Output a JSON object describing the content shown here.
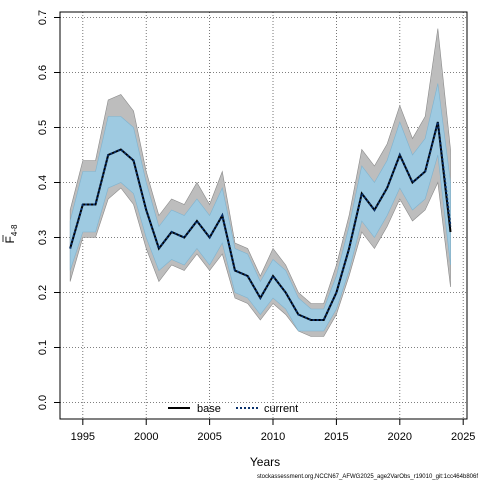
{
  "chart_data": {
    "type": "line",
    "xlabel": "Years",
    "ylabel_main": "F",
    "ylabel_sub": "4-8",
    "xlim": [
      1993.2,
      2025.3
    ],
    "ylim": [
      -0.03,
      0.71
    ],
    "x_ticks": [
      1995,
      2000,
      2005,
      2010,
      2015,
      2020,
      2025
    ],
    "y_ticks": [
      0.0,
      0.1,
      0.2,
      0.3,
      0.4,
      0.5,
      0.6,
      0.7
    ],
    "y_tick_labels": [
      "0.0",
      "0.1",
      "0.2",
      "0.3",
      "0.4",
      "0.5",
      "0.6",
      "0.7"
    ],
    "grid": true,
    "legend_position": "bottom-center",
    "x": [
      1994,
      1995,
      1996,
      1997,
      1998,
      1999,
      2000,
      2001,
      2002,
      2003,
      2004,
      2005,
      2006,
      2007,
      2008,
      2009,
      2010,
      2011,
      2012,
      2013,
      2014,
      2015,
      2016,
      2017,
      2018,
      2019,
      2020,
      2021,
      2022,
      2023,
      2024
    ],
    "series": [
      {
        "name": "base",
        "style": "solid",
        "color": "#000000",
        "values": [
          0.28,
          0.36,
          0.36,
          0.45,
          0.46,
          0.44,
          0.35,
          0.28,
          0.31,
          0.3,
          0.33,
          0.3,
          0.34,
          0.24,
          0.23,
          0.19,
          0.23,
          0.2,
          0.16,
          0.15,
          0.15,
          0.2,
          0.28,
          0.38,
          0.35,
          0.39,
          0.45,
          0.4,
          0.42,
          0.51,
          0.31
        ],
        "band_lower": [
          0.22,
          0.3,
          0.3,
          0.37,
          0.39,
          0.36,
          0.28,
          0.22,
          0.25,
          0.24,
          0.27,
          0.24,
          0.27,
          0.19,
          0.18,
          0.15,
          0.18,
          0.16,
          0.13,
          0.12,
          0.12,
          0.16,
          0.23,
          0.31,
          0.28,
          0.32,
          0.37,
          0.33,
          0.35,
          0.4,
          0.21
        ],
        "band_upper": [
          0.35,
          0.44,
          0.44,
          0.55,
          0.56,
          0.53,
          0.42,
          0.34,
          0.37,
          0.36,
          0.4,
          0.36,
          0.42,
          0.29,
          0.28,
          0.23,
          0.28,
          0.25,
          0.2,
          0.18,
          0.18,
          0.25,
          0.34,
          0.46,
          0.43,
          0.47,
          0.54,
          0.48,
          0.52,
          0.68,
          0.46
        ],
        "band_color": "#bdbdbd"
      },
      {
        "name": "current",
        "style": "dotted",
        "color": "#08306b",
        "values": [
          0.28,
          0.36,
          0.36,
          0.45,
          0.46,
          0.44,
          0.35,
          0.28,
          0.31,
          0.3,
          0.33,
          0.3,
          0.34,
          0.24,
          0.23,
          0.19,
          0.23,
          0.2,
          0.16,
          0.15,
          0.15,
          0.2,
          0.28,
          0.38,
          0.35,
          0.39,
          0.45,
          0.4,
          0.42,
          0.51,
          0.32
        ],
        "band_lower": [
          0.24,
          0.31,
          0.31,
          0.39,
          0.4,
          0.38,
          0.3,
          0.24,
          0.26,
          0.25,
          0.28,
          0.25,
          0.29,
          0.2,
          0.19,
          0.16,
          0.19,
          0.17,
          0.13,
          0.13,
          0.13,
          0.17,
          0.24,
          0.33,
          0.3,
          0.34,
          0.39,
          0.35,
          0.37,
          0.45,
          0.25
        ],
        "band_upper": [
          0.33,
          0.42,
          0.42,
          0.52,
          0.52,
          0.5,
          0.4,
          0.32,
          0.35,
          0.34,
          0.37,
          0.34,
          0.39,
          0.28,
          0.27,
          0.22,
          0.26,
          0.24,
          0.19,
          0.17,
          0.17,
          0.23,
          0.32,
          0.43,
          0.4,
          0.44,
          0.51,
          0.45,
          0.48,
          0.58,
          0.4
        ],
        "band_color": "#9ecae1"
      }
    ],
    "footer_text": "stockassessment.org,NCCN67_AFWG2025_age2VarObs_r19010_git:1cc464b806f"
  }
}
